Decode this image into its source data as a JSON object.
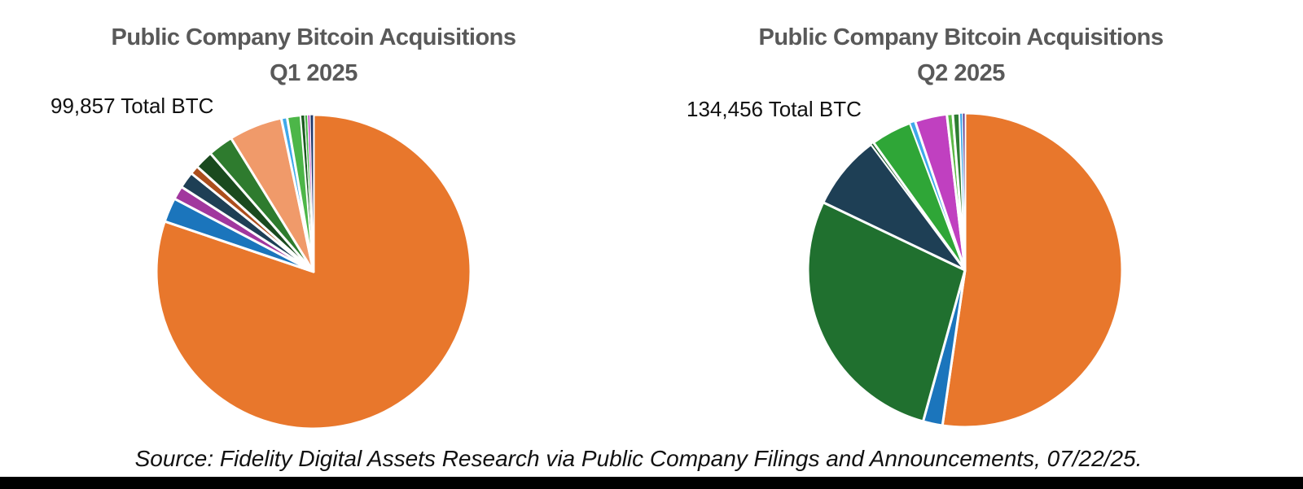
{
  "page": {
    "background_color": "#ffffff",
    "footer_bar_color": "#000000",
    "source_note": "Source: Fidelity Digital Assets Research via Public Company Filings and Announcements, 07/22/25."
  },
  "charts": [
    {
      "title_line1": "Public Company Bitcoin Acquisitions",
      "title_line2": "Q1 2025",
      "total_label": "99,857 Total BTC"
    },
    {
      "title_line1": "Public Company Bitcoin Acquisitions",
      "title_line2": "Q2 2025",
      "total_label": "134,456 Total BTC"
    }
  ],
  "chart_data": [
    {
      "type": "pie",
      "title": "Public Company Bitcoin Acquisitions Q1 2025",
      "annotation": "99,857 Total BTC",
      "total_btc": 99857,
      "units": "BTC",
      "start_angle_deg": 0,
      "direction": "clockwise",
      "slice_border_color": "#ffffff",
      "note": "Slices are unlabeled in the figure; percentages estimated from slice angles, listed clockwise from 12 o'clock.",
      "slices": [
        {
          "name": "orange-largest",
          "color": "#E8772C",
          "percent_est": 80.2
        },
        {
          "name": "blue",
          "color": "#1B75BC",
          "percent_est": 2.5
        },
        {
          "name": "purple",
          "color": "#A1379E",
          "percent_est": 1.4
        },
        {
          "name": "dark-slate",
          "color": "#1E3F55",
          "percent_est": 1.7
        },
        {
          "name": "rust-brown",
          "color": "#AC4E1C",
          "percent_est": 0.9
        },
        {
          "name": "dark-green",
          "color": "#1A4A1E",
          "percent_est": 1.9
        },
        {
          "name": "forest-green",
          "color": "#2E7B2E",
          "percent_est": 2.6
        },
        {
          "name": "salmon",
          "color": "#F09A6A",
          "percent_est": 5.5
        },
        {
          "name": "sky-blue",
          "color": "#3FA9EA",
          "percent_est": 0.6
        },
        {
          "name": "green",
          "color": "#4CB648",
          "percent_est": 1.4
        },
        {
          "name": "dark-green-sliver",
          "color": "#1C5B20",
          "percent_est": 0.4
        },
        {
          "name": "green-sliver",
          "color": "#4CB648",
          "percent_est": 0.3
        },
        {
          "name": "magenta-sliver",
          "color": "#C23FC2",
          "percent_est": 0.25
        },
        {
          "name": "navy-sliver",
          "color": "#20386A",
          "percent_est": 0.35
        }
      ]
    },
    {
      "type": "pie",
      "title": "Public Company Bitcoin Acquisitions Q2 2025",
      "annotation": "134,456 Total BTC",
      "total_btc": 134456,
      "units": "BTC",
      "start_angle_deg": 0,
      "direction": "clockwise",
      "slice_border_color": "#ffffff",
      "note": "Slices are unlabeled in the figure; percentages estimated from slice angles, listed clockwise from 12 o'clock.",
      "slices": [
        {
          "name": "orange-largest",
          "color": "#E8772C",
          "percent_est": 52.3
        },
        {
          "name": "blue",
          "color": "#1B75BC",
          "percent_est": 2.0
        },
        {
          "name": "forest-green",
          "color": "#20702F",
          "percent_est": 27.8
        },
        {
          "name": "dark-slate",
          "color": "#1E3F55",
          "percent_est": 7.7
        },
        {
          "name": "dark-green-hairline",
          "color": "#1E5B2A",
          "percent_est": 0.3
        },
        {
          "name": "green",
          "color": "#2FA637",
          "percent_est": 4.2
        },
        {
          "name": "sky-blue",
          "color": "#3FA9EA",
          "percent_est": 0.55
        },
        {
          "name": "magenta",
          "color": "#C040C0",
          "percent_est": 3.3
        },
        {
          "name": "light-green-sliver",
          "color": "#5CB947",
          "percent_est": 0.6
        },
        {
          "name": "dark-green-small",
          "color": "#2E7D32",
          "percent_est": 0.7
        },
        {
          "name": "sky-blue-hairline",
          "color": "#3FA9EA",
          "percent_est": 0.3
        },
        {
          "name": "dark-violet-hairline",
          "color": "#55267A",
          "percent_est": 0.25
        }
      ]
    }
  ]
}
